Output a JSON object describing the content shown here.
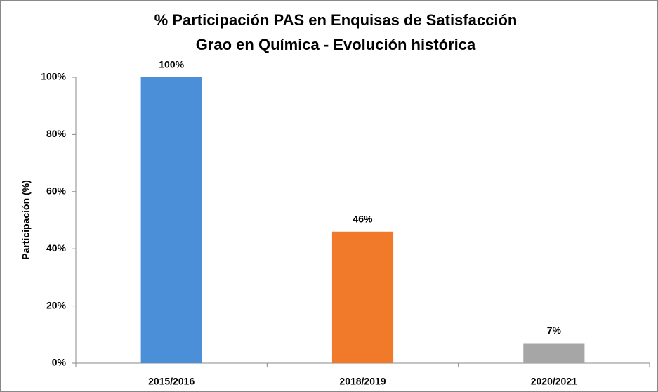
{
  "chart_data": {
    "type": "bar",
    "title": "% Participación PAS en Enquisas de Satisfacción",
    "subtitle": "Grao en Química - Evolución histórica",
    "y_label": "Participación  (%)",
    "categories": [
      "2015/2016",
      "2018/2019",
      "2020/2021"
    ],
    "values": [
      100,
      46,
      7
    ],
    "value_labels": [
      "100%",
      "46%",
      "7%"
    ],
    "colors": [
      "#4a8fd8",
      "#f07a2a",
      "#a6a6a6"
    ],
    "ylim": [
      0,
      100
    ],
    "yticks": [
      {
        "value": 0,
        "label": "0%"
      },
      {
        "value": 20,
        "label": "20%"
      },
      {
        "value": 40,
        "label": "40%"
      },
      {
        "value": 60,
        "label": "60%"
      },
      {
        "value": 80,
        "label": "80%"
      },
      {
        "value": 100,
        "label": "100%"
      }
    ],
    "grid": false
  }
}
